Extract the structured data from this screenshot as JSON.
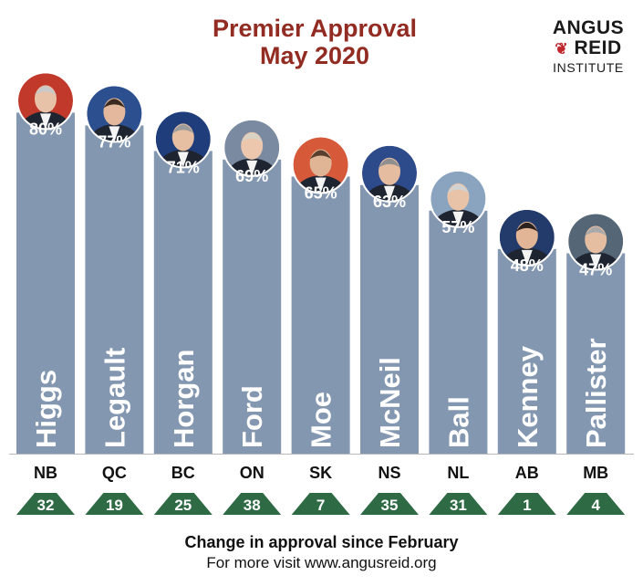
{
  "title_line1": "Premier Approval",
  "title_line2": "May 2020",
  "logo": {
    "line1": "ANGUS",
    "line2": "REID",
    "line3": "INSTITUTE",
    "leaf_glyph": "❦"
  },
  "footer": {
    "line1": "Change in approval since February",
    "line2": "For more visit www.angusreid.org"
  },
  "colors": {
    "bar": "#8497b0",
    "title": "#922b21",
    "badge": "#2e6b45",
    "label_text": "#ffffff"
  },
  "chart_data": {
    "type": "bar",
    "categories": [
      "Higgs",
      "Legault",
      "Horgan",
      "Ford",
      "Moe",
      "McNeil",
      "Ball",
      "Kenney",
      "Pallister"
    ],
    "provinces": [
      "NB",
      "QC",
      "BC",
      "ON",
      "SK",
      "NS",
      "NL",
      "AB",
      "MB"
    ],
    "values": [
      80,
      77,
      71,
      69,
      65,
      63,
      57,
      48,
      47
    ],
    "value_labels": [
      "80%",
      "77%",
      "71%",
      "69%",
      "65%",
      "63%",
      "57%",
      "48%",
      "47%"
    ],
    "change_since_february": [
      32,
      19,
      25,
      38,
      7,
      35,
      31,
      1,
      4
    ],
    "change_direction": "up",
    "ylim": [
      0,
      100
    ],
    "grid": false,
    "legend": "none",
    "icons": [
      "portrait-higgs-icon",
      "portrait-legault-icon",
      "portrait-horgan-icon",
      "portrait-ford-icon",
      "portrait-moe-icon",
      "portrait-mcneil-icon",
      "portrait-ball-icon",
      "portrait-kenney-icon",
      "portrait-pallister-icon"
    ]
  }
}
